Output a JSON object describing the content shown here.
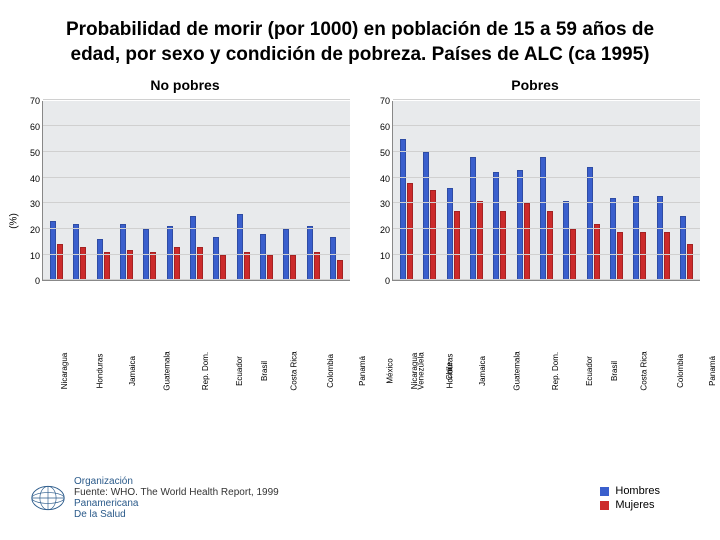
{
  "title": "Probabilidad de morir (por 1000) en población de 15 a 59 años de edad, por sexo y condición de pobreza. Países de ALC (ca 1995)",
  "title_fontsize": 19,
  "ylabel": "(%)",
  "ymax": 70,
  "ytick_step": 10,
  "grid_color": "#d0d0d0",
  "plot_bg": "#e8eaec",
  "colors": {
    "hombres": "#3a5fcd",
    "mujeres": "#cc2b2b"
  },
  "categories": [
    "Nicaragua",
    "Honduras",
    "Jamaica",
    "Guatemala",
    "Rep. Dom.",
    "Ecuador",
    "Brasil",
    "Costa Rica",
    "Colombia",
    "Panamá",
    "México",
    "Venezuela",
    "Chile"
  ],
  "charts": [
    {
      "subtitle": "No pobres",
      "hombres": [
        23,
        22,
        16,
        22,
        20,
        21,
        25,
        17,
        26,
        18,
        20,
        21,
        17
      ],
      "mujeres": [
        14,
        13,
        11,
        12,
        11,
        13,
        13,
        10,
        11,
        10,
        10,
        11,
        8
      ]
    },
    {
      "subtitle": "Pobres",
      "hombres": [
        55,
        50,
        36,
        48,
        42,
        43,
        48,
        31,
        44,
        32,
        33,
        33,
        25
      ],
      "mujeres": [
        38,
        35,
        27,
        31,
        27,
        30,
        27,
        20,
        22,
        19,
        19,
        19,
        14
      ]
    }
  ],
  "legend": {
    "hombres": "Hombres",
    "mujeres": "Mujeres"
  },
  "org": {
    "line1": "Organización",
    "line2": "Panamericana",
    "line3": "De la Salud"
  },
  "source": "Fuente: WHO. The World Health Report, 1999"
}
